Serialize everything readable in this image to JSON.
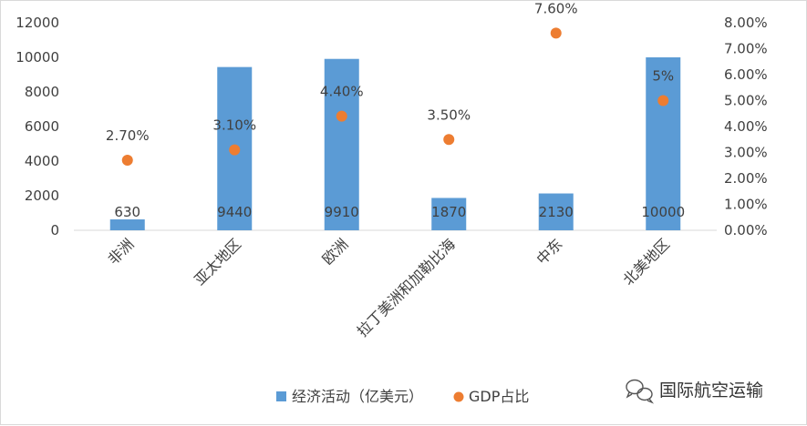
{
  "chart_data": {
    "type": "bar",
    "categories": [
      "非洲",
      "亚太地区",
      "欧洲",
      "拉丁美洲和加勒比海",
      "中东",
      "北美地区"
    ],
    "series": [
      {
        "name": "经济活动（亿美元）",
        "type": "bar",
        "axis": "left",
        "values": [
          630,
          9440,
          9910,
          1870,
          2130,
          10000
        ],
        "labels": [
          "630",
          "9440",
          "9910",
          "1870",
          "2130",
          "10000"
        ],
        "color": "#5b9bd5"
      },
      {
        "name": "GDP占比",
        "type": "scatter",
        "axis": "right",
        "values": [
          2.7,
          3.1,
          4.4,
          3.5,
          7.6,
          5.0
        ],
        "labels": [
          "2.70%",
          "3.10%",
          "4.40%",
          "3.50%",
          "7.60%",
          "5%"
        ],
        "color": "#ed7d31"
      }
    ],
    "y_left": {
      "min": 0,
      "max": 12000,
      "ticks": [
        "0",
        "2000",
        "4000",
        "6000",
        "8000",
        "10000",
        "12000"
      ]
    },
    "y_right": {
      "min": 0,
      "max": 8,
      "ticks": [
        "0.00%",
        "1.00%",
        "2.00%",
        "3.00%",
        "4.00%",
        "5.00%",
        "6.00%",
        "7.00%",
        "8.00%"
      ]
    },
    "grid": false,
    "legend": "bottom"
  },
  "watermark": {
    "text": "国际航空运输",
    "icon": "wechat-icon"
  }
}
